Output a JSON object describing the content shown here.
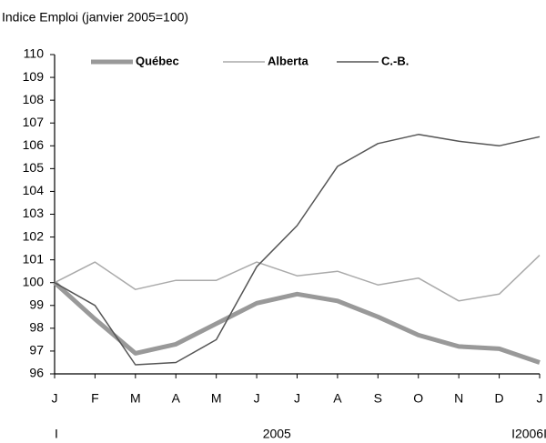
{
  "chart_data": {
    "type": "line",
    "title": "Indice Emploi (janvier 2005=100)",
    "categories": [
      "J",
      "F",
      "M",
      "A",
      "M",
      "J",
      "J",
      "A",
      "S",
      "O",
      "N",
      "D",
      "J"
    ],
    "group_labels": [
      "I",
      "2005",
      "I2006I"
    ],
    "series": [
      {
        "name": "Québec",
        "color": "#999999",
        "values": [
          100,
          98.4,
          96.9,
          97.3,
          98.2,
          99.1,
          99.5,
          99.2,
          98.5,
          97.7,
          97.2,
          97.1,
          96.5
        ]
      },
      {
        "name": "Alberta",
        "color": "#aaaaaa",
        "values": [
          100,
          100.9,
          99.7,
          100.1,
          100.1,
          100.9,
          100.3,
          100.5,
          99.9,
          100.2,
          99.2,
          99.5,
          101.2
        ]
      },
      {
        "name": "C.-B.",
        "color": "#555555",
        "values": [
          100,
          99.0,
          96.4,
          96.5,
          97.5,
          100.7,
          102.5,
          105.1,
          106.1,
          106.5,
          106.2,
          106.0,
          106.4
        ]
      }
    ],
    "ylim": [
      96,
      110
    ],
    "yticks": [
      96,
      97,
      98,
      99,
      100,
      101,
      102,
      103,
      104,
      105,
      106,
      107,
      108,
      109,
      110
    ],
    "grid": false
  }
}
